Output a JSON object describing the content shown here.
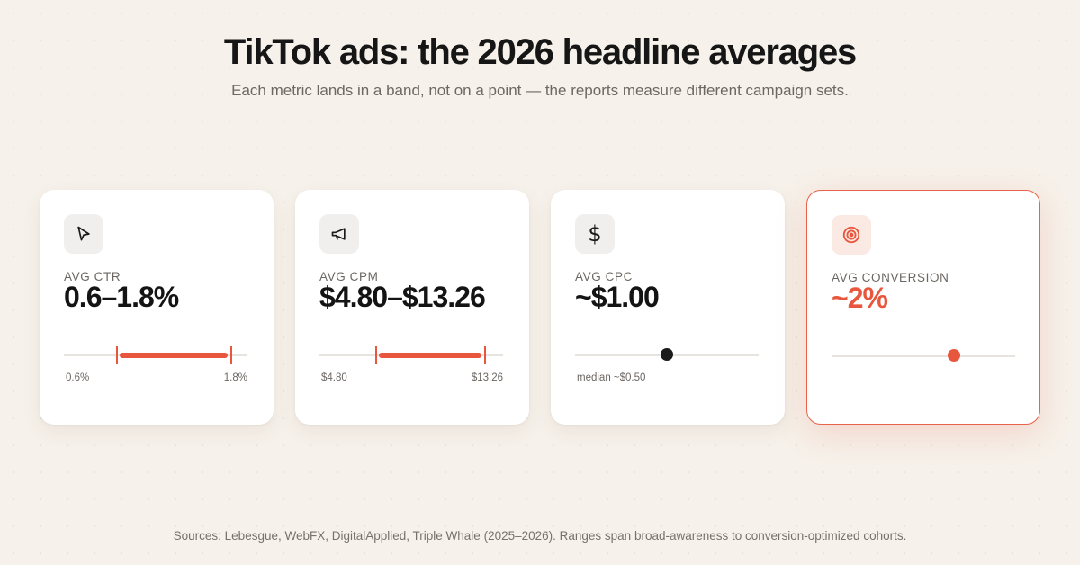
{
  "header": {
    "title": "TikTok ads: the 2026 headline averages",
    "subtitle": "Each metric lands in a band, not on a point — the reports measure different campaign sets."
  },
  "cards": [
    {
      "icon": "cursor-arrow-icon",
      "label": "AVG CTR",
      "value": "0.6–1.8%",
      "range_min_label": "0.6%",
      "range_max_label": "1.8%",
      "band": [
        0.6,
        1.8
      ]
    },
    {
      "icon": "megaphone-icon",
      "label": "AVG CPM",
      "value": "$4.80–$13.26",
      "range_min_label": "$4.80",
      "range_max_label": "$13.26",
      "band": [
        4.8,
        13.26
      ]
    },
    {
      "icon": "dollar-icon",
      "label": "AVG CPC",
      "value": "~$1.00",
      "marker_label": "median ~$0.50",
      "marker_color": "#1a1a1a"
    },
    {
      "icon": "target-icon",
      "label": "AVG CONVERSION",
      "value": "~2%",
      "marker_color": "#e8573d",
      "highlighted": true
    }
  ],
  "colors": {
    "accent": "#e8573d",
    "background": "#f6f1ea",
    "card": "#ffffff"
  },
  "footer": {
    "sources": "Sources: Lebesgue, WebFX, DigitalApplied, Triple Whale (2025–2026). Ranges span broad-awareness to conversion-optimized cohorts."
  }
}
